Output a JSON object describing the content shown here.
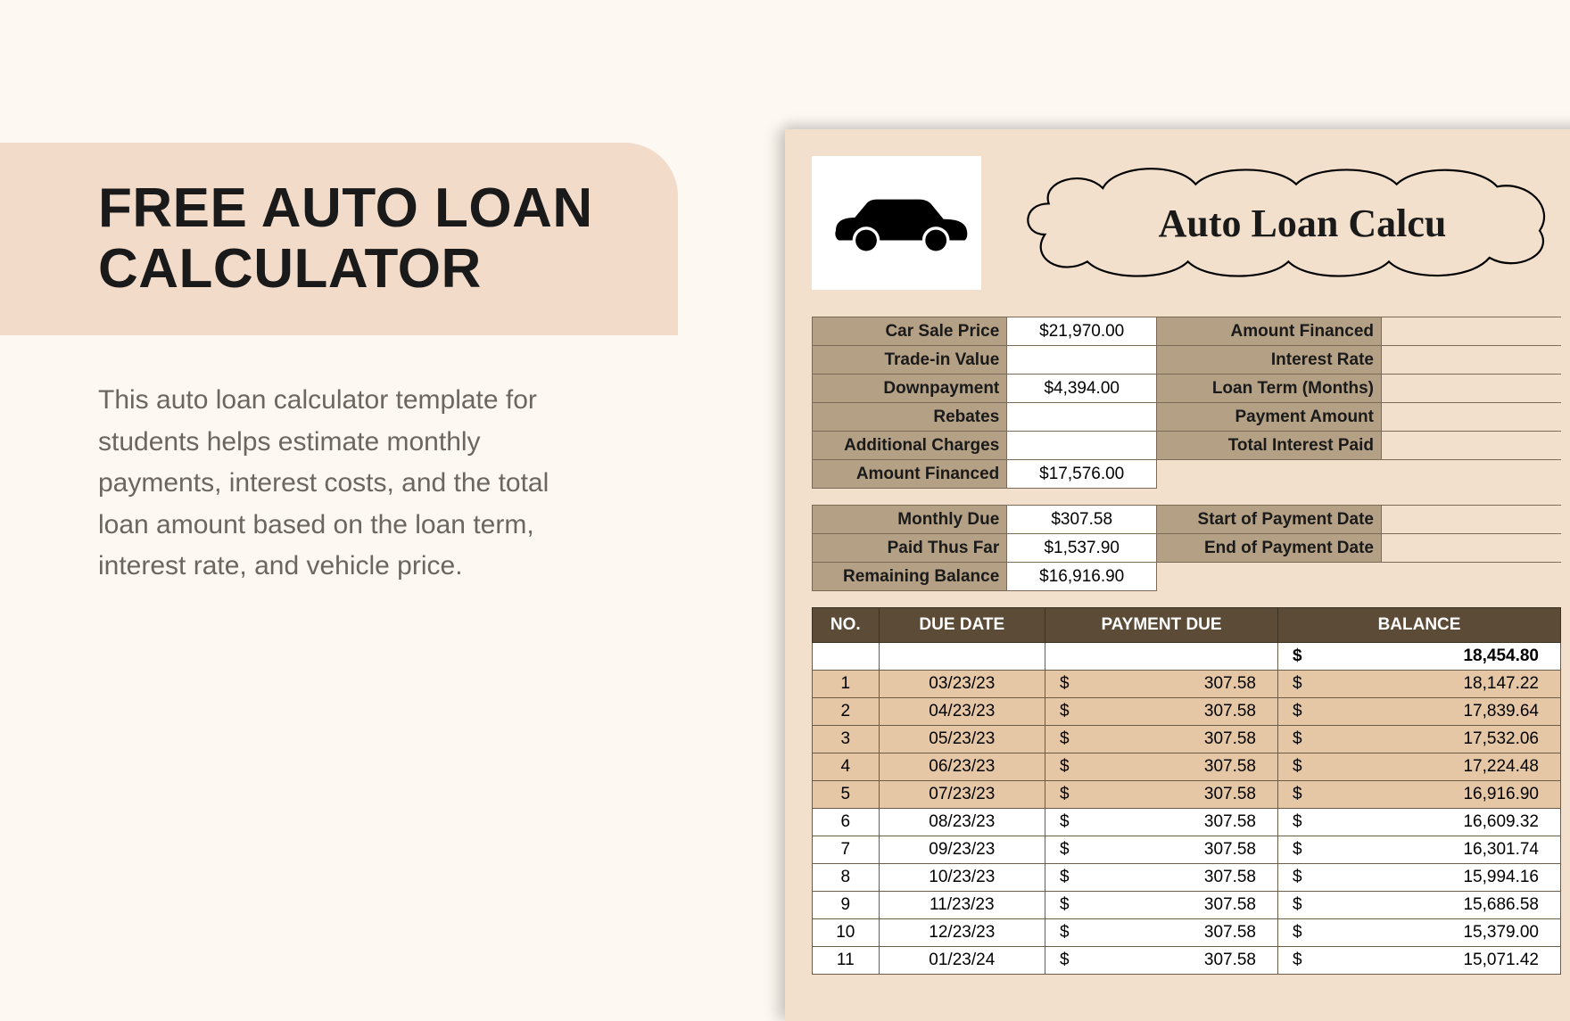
{
  "left": {
    "title": "FREE AUTO LOAN CALCULATOR",
    "description": "This auto loan calculator template for students helps estimate monthly payments, interest costs, and the total loan amount based on the loan term, interest rate, and vehicle price."
  },
  "sheet": {
    "title": "Auto Loan Calcu",
    "colors": {
      "page_bg": "#fdf8f2",
      "panel_bg": "#f3e0cc",
      "title_bg": "#f2dbc8",
      "label_bg": "#b4a085",
      "header_bg": "#5c4c37",
      "stripe_bg": "#e5c7a5",
      "border": "#7a6a56"
    },
    "kv1": [
      {
        "label": "Car Sale Price",
        "value": "$21,970.00",
        "label2": "Amount Financed"
      },
      {
        "label": "Trade-in Value",
        "value": "",
        "label2": "Interest Rate"
      },
      {
        "label": "Downpayment",
        "value": "$4,394.00",
        "label2": "Loan Term (Months)"
      },
      {
        "label": "Rebates",
        "value": "",
        "label2": "Payment Amount"
      },
      {
        "label": "Additional Charges",
        "value": "",
        "label2": "Total Interest Paid"
      },
      {
        "label": "Amount Financed",
        "value": "$17,576.00",
        "label2": ""
      }
    ],
    "kv2": [
      {
        "label": "Monthly Due",
        "value": "$307.58",
        "label2": "Start of Payment Date"
      },
      {
        "label": "Paid Thus Far",
        "value": "$1,537.90",
        "label2": "End of Payment Date"
      },
      {
        "label": "Remaining Balance",
        "value": "$16,916.90",
        "label2": ""
      }
    ],
    "schedule": {
      "headers": [
        "NO.",
        "DUE DATE",
        "PAYMENT DUE",
        "BALANCE"
      ],
      "opening_balance": "18,454.80",
      "rows": [
        {
          "no": "1",
          "date": "03/23/23",
          "payment": "307.58",
          "balance": "18,147.22",
          "stripe": true
        },
        {
          "no": "2",
          "date": "04/23/23",
          "payment": "307.58",
          "balance": "17,839.64",
          "stripe": true
        },
        {
          "no": "3",
          "date": "05/23/23",
          "payment": "307.58",
          "balance": "17,532.06",
          "stripe": true
        },
        {
          "no": "4",
          "date": "06/23/23",
          "payment": "307.58",
          "balance": "17,224.48",
          "stripe": true
        },
        {
          "no": "5",
          "date": "07/23/23",
          "payment": "307.58",
          "balance": "16,916.90",
          "stripe": true
        },
        {
          "no": "6",
          "date": "08/23/23",
          "payment": "307.58",
          "balance": "16,609.32",
          "stripe": false
        },
        {
          "no": "7",
          "date": "09/23/23",
          "payment": "307.58",
          "balance": "16,301.74",
          "stripe": false
        },
        {
          "no": "8",
          "date": "10/23/23",
          "payment": "307.58",
          "balance": "15,994.16",
          "stripe": false
        },
        {
          "no": "9",
          "date": "11/23/23",
          "payment": "307.58",
          "balance": "15,686.58",
          "stripe": false
        },
        {
          "no": "10",
          "date": "12/23/23",
          "payment": "307.58",
          "balance": "15,379.00",
          "stripe": false
        },
        {
          "no": "11",
          "date": "01/23/24",
          "payment": "307.58",
          "balance": "15,071.42",
          "stripe": false
        }
      ]
    }
  }
}
